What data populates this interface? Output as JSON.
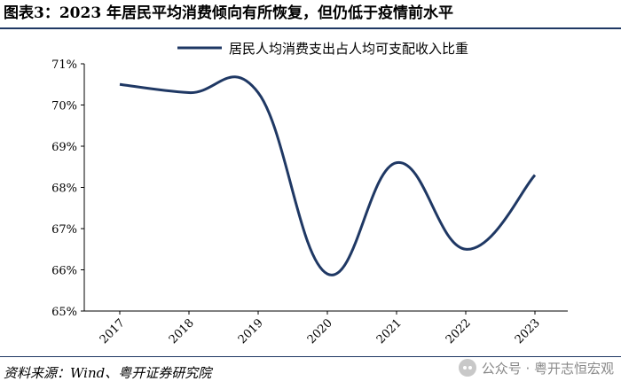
{
  "header": {
    "title": "图表3：2023 年居民平均消费倾向有所恢复，但仍低于疫情前水平"
  },
  "footer": {
    "source": "资料来源：Wind、粤开证券研究院",
    "watermark": "公众号 · 粤开志恒宏观",
    "watermark_icon": "wechat-icon"
  },
  "chart_data": {
    "type": "line",
    "title": "",
    "xlabel": "",
    "ylabel": "",
    "categories": [
      "2017",
      "2018",
      "2019",
      "2020",
      "2021",
      "2022",
      "2023"
    ],
    "yticks": [
      "65%",
      "66%",
      "67%",
      "68%",
      "69%",
      "70%",
      "71%"
    ],
    "ylim": [
      65,
      71
    ],
    "series": [
      {
        "name": "居民人均消费支出占人均可支配收入比重",
        "values": [
          70.5,
          70.3,
          70.3,
          65.9,
          68.6,
          66.5,
          68.3
        ],
        "color": "#1f3864"
      }
    ],
    "grid": false,
    "legend": "top-center"
  }
}
